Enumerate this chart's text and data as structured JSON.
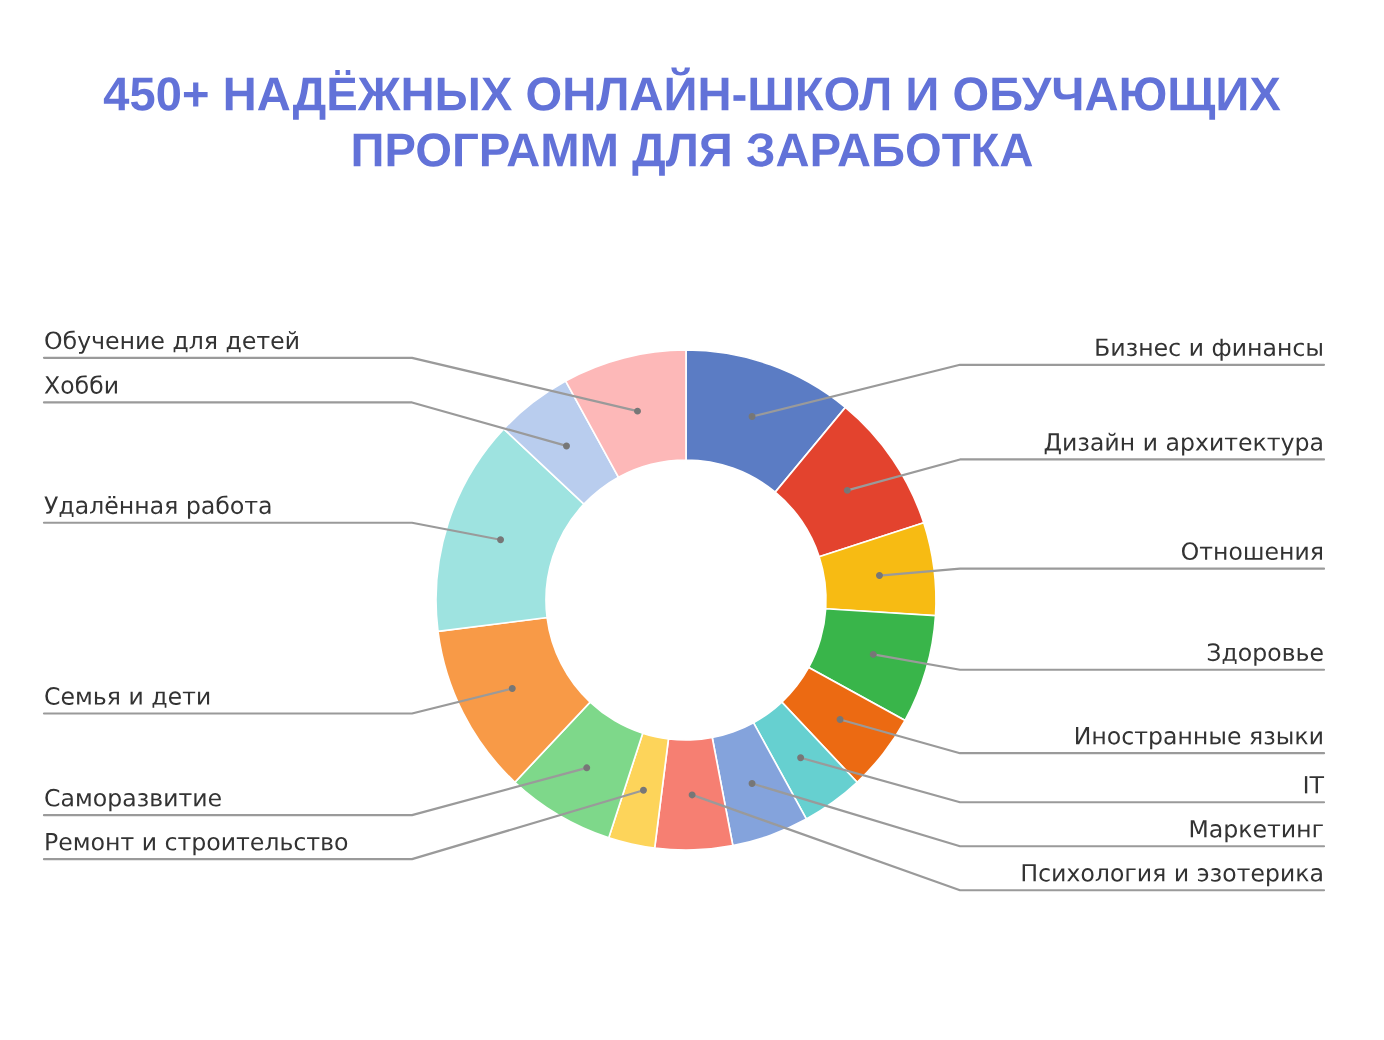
{
  "chart_data": {
    "type": "donut",
    "title": "450+ НАДЁЖНЫХ ОНЛАЙН-ШКОЛ И ОБУЧАЮЩИХ\nПРОГРАММ ДЛЯ ЗАРАБОТКА",
    "categories": [
      "Бизнес и финансы",
      "Дизайн и архитектура",
      "Отношения",
      "Здоровье",
      "Иностранные языки",
      "IT",
      "Маркетинг",
      "Психология и эзотерика",
      "Ремонт и строительство",
      "Саморазвитие",
      "Семья и дети",
      "Удалённая работа",
      "Хобби",
      "Обучение для детей"
    ],
    "values": [
      11,
      9,
      6,
      7,
      5,
      4,
      5,
      5,
      3,
      7,
      11,
      14,
      5,
      8
    ],
    "colors": [
      "#5b7cc4",
      "#e3432e",
      "#f7bb13",
      "#39b54a",
      "#ec6a12",
      "#66d0d0",
      "#84a3dc",
      "#f67f72",
      "#fdd45a",
      "#7ed88a",
      "#f89a47",
      "#9ee3e0",
      "#b9cdee",
      "#fdb8b8"
    ]
  }
}
